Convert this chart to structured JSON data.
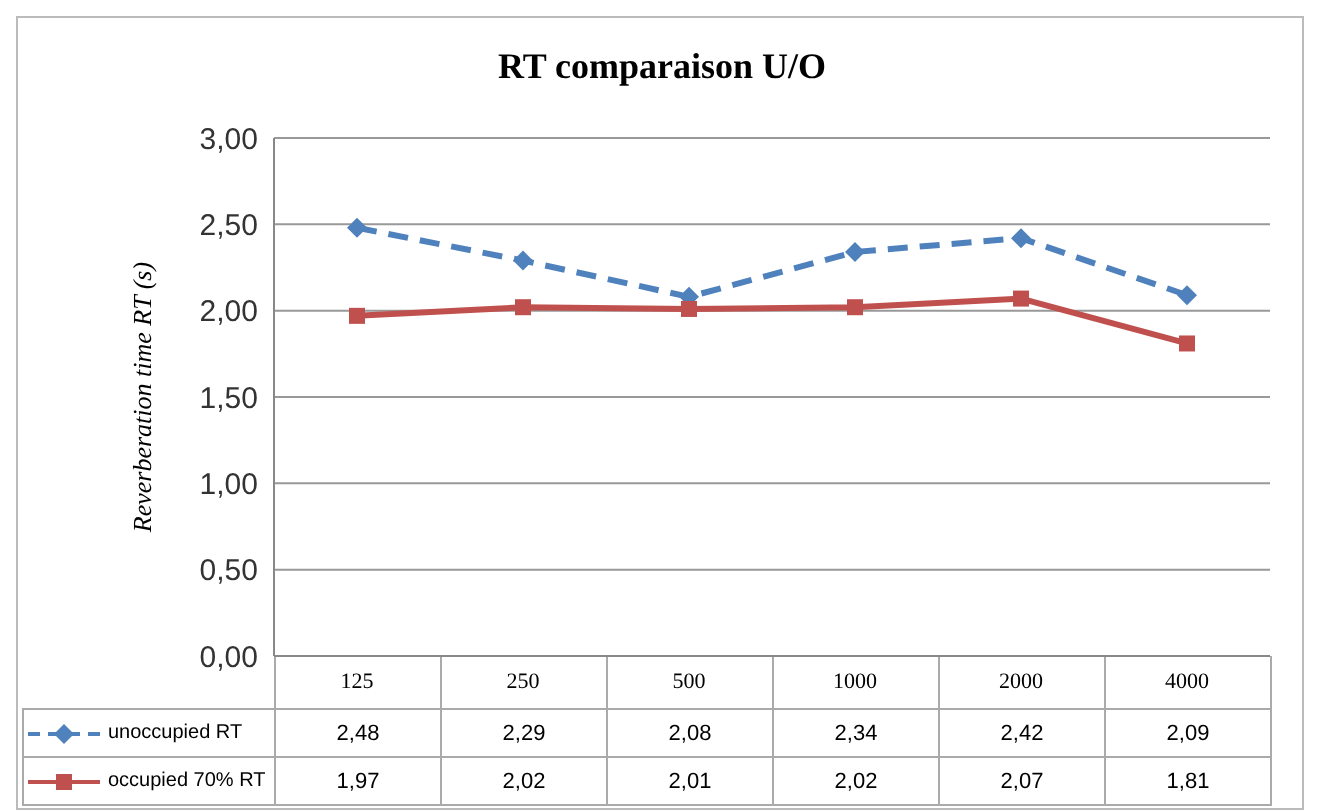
{
  "chart_data": {
    "type": "line",
    "title": "RT comparaison U/O",
    "ylabel": "Reverberation time RT (s)",
    "categories": [
      "125",
      "250",
      "500",
      "1000",
      "2000",
      "4000"
    ],
    "series": [
      {
        "name": "unoccupied RT",
        "color": "#4f81bd",
        "marker": "diamond",
        "line_style": "dashed",
        "values": [
          2.48,
          2.29,
          2.08,
          2.34,
          2.42,
          2.09
        ],
        "value_labels": [
          "2,48",
          "2,29",
          "2,08",
          "2,34",
          "2,42",
          "2,09"
        ]
      },
      {
        "name": "occupied 70% RT",
        "color": "#c0504d",
        "marker": "square",
        "line_style": "solid",
        "values": [
          1.97,
          2.02,
          2.01,
          2.02,
          2.07,
          1.81
        ],
        "value_labels": [
          "1,97",
          "2,02",
          "2,01",
          "2,02",
          "2,07",
          "1,81"
        ]
      }
    ],
    "ylim": [
      0,
      3
    ],
    "yticks": [
      {
        "value": 0,
        "label": "0,00"
      },
      {
        "value": 0.5,
        "label": "0,50"
      },
      {
        "value": 1,
        "label": "1,00"
      },
      {
        "value": 1.5,
        "label": "1,50"
      },
      {
        "value": 2,
        "label": "2,00"
      },
      {
        "value": 2.5,
        "label": "2,50"
      },
      {
        "value": 3,
        "label": "3,00"
      }
    ],
    "grid": "y",
    "legend": "bottom"
  }
}
